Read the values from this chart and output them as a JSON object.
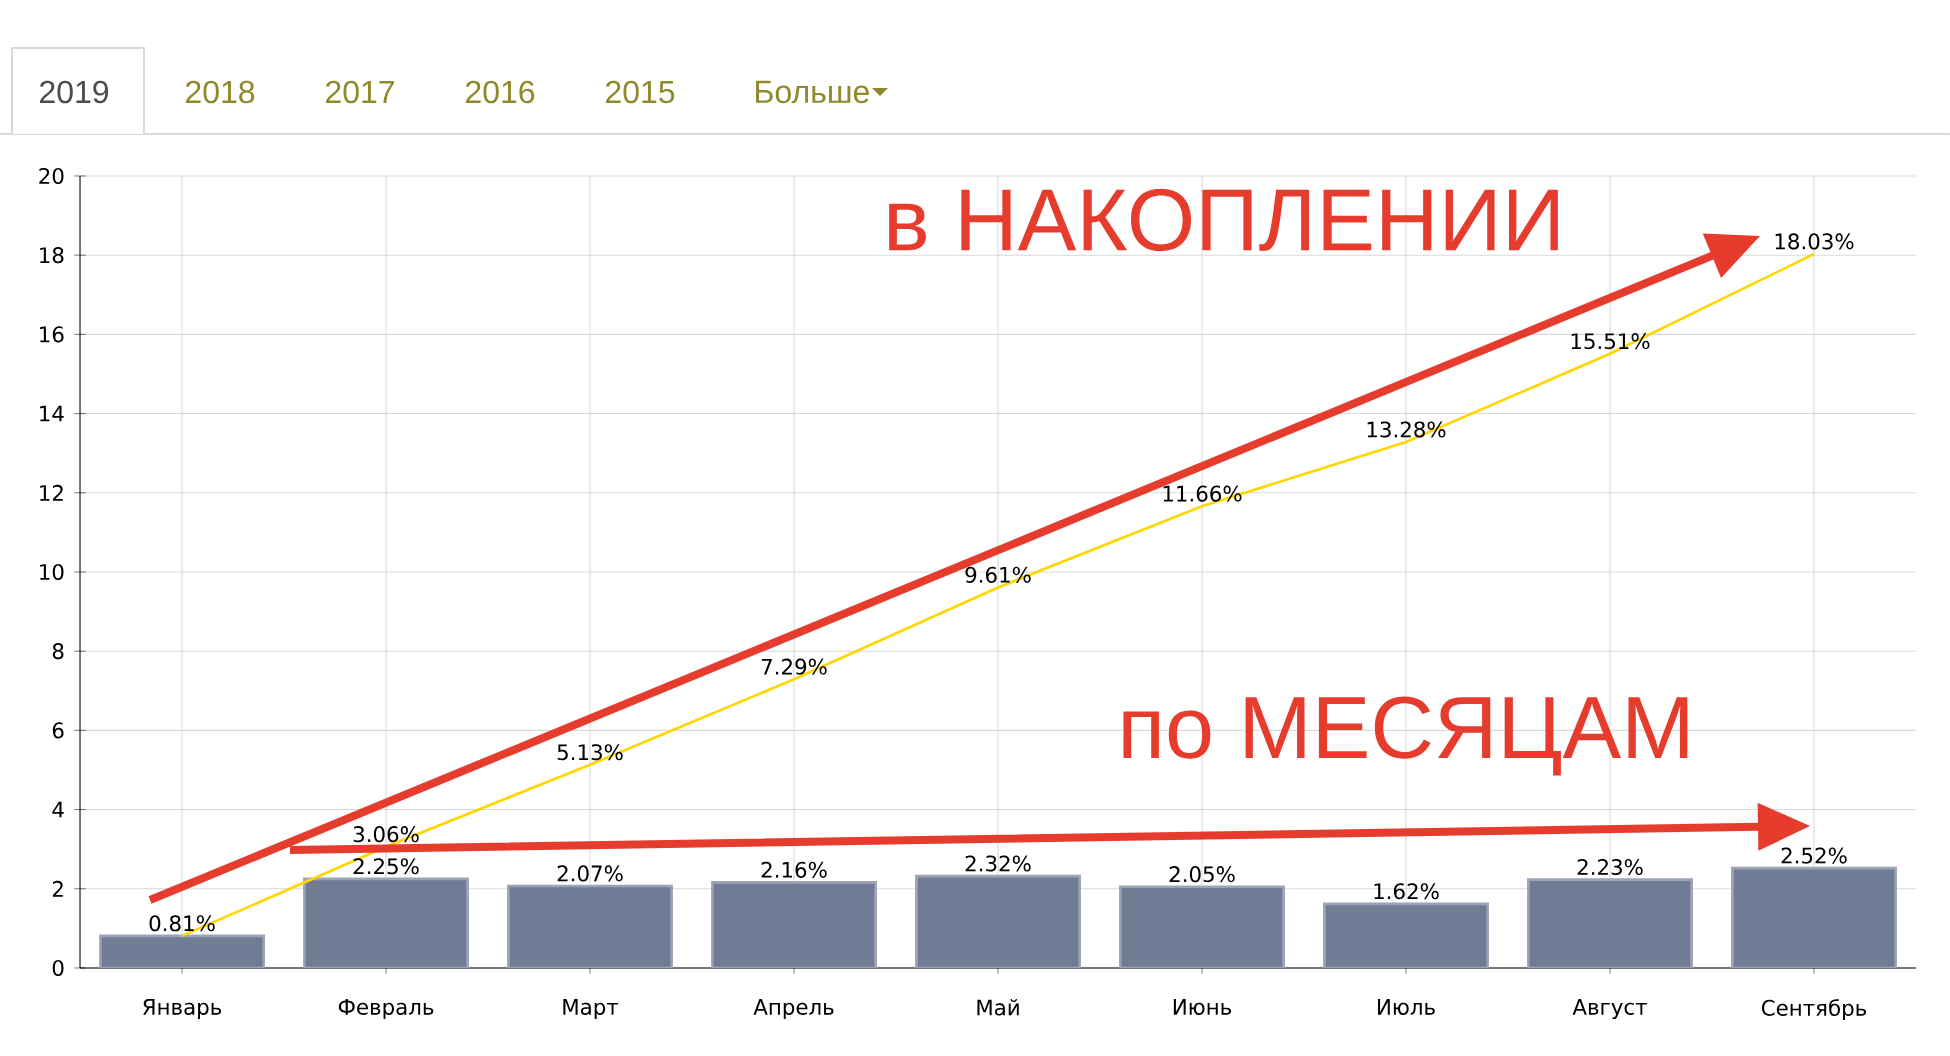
{
  "chart_data": {
    "type": "bar",
    "categories": [
      "Январь",
      "Февраль",
      "Март",
      "Апрель",
      "Май",
      "Июнь",
      "Июль",
      "Август",
      "Сентябрь"
    ],
    "series": [
      {
        "color": "#707b96",
        "values": [
          0.81,
          2.25,
          2.07,
          2.16,
          2.32,
          2.05,
          1.62,
          2.23,
          2.52
        ],
        "value_labels": [
          "0.81%",
          "2.25%",
          "2.07%",
          "2.16%",
          "2.32%",
          "2.05%",
          "1.62%",
          "2.23%",
          "2.52%"
        ]
      },
      {
        "type": "line",
        "color": "#ffd700",
        "values": [
          0.81,
          3.06,
          5.13,
          7.29,
          9.61,
          11.66,
          13.28,
          15.51,
          18.03
        ],
        "value_labels": [
          null,
          "3.06%",
          "5.13%",
          "7.29%",
          "9.61%",
          "11.66%",
          "13.28%",
          "15.51%",
          "18.03%"
        ]
      }
    ],
    "ylim": [
      0,
      20
    ],
    "yticks": [
      0,
      2,
      4,
      6,
      8,
      10,
      12,
      14,
      16,
      18,
      20
    ],
    "grid": true,
    "annotations": [
      "2019",
      "2018",
      "2017",
      "2016",
      "2015",
      "Больше",
      "в НАКОПЛЕНИИ",
      "по МЕСЯЦАМ"
    ]
  }
}
